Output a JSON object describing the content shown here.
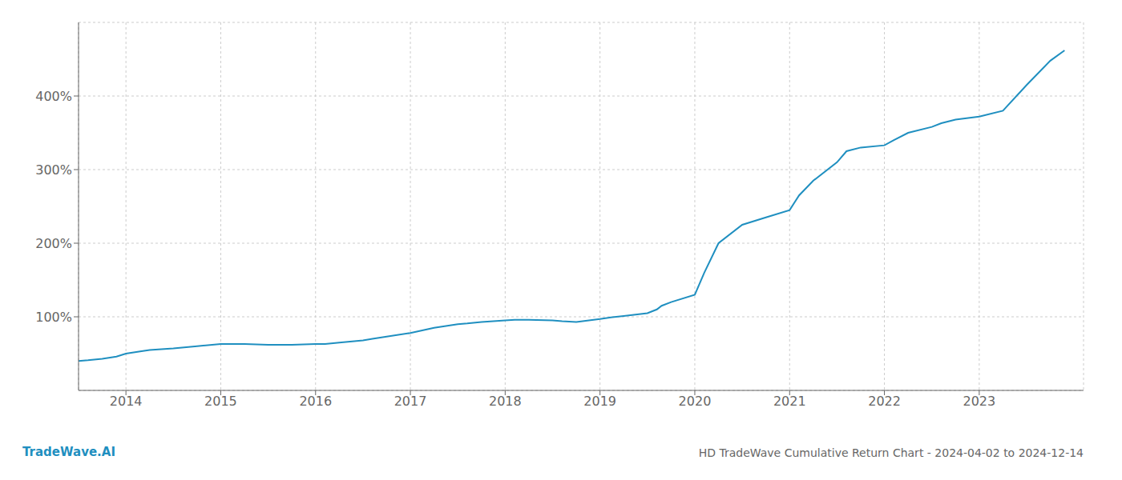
{
  "chart_data": {
    "type": "line",
    "title": "HD TradeWave Cumulative Return Chart - 2024-04-02 to 2024-12-14",
    "annotations": [
      "TradeWave.AI"
    ],
    "x": [
      2013.5,
      2013.6,
      2013.75,
      2013.9,
      2014.0,
      2014.15,
      2014.25,
      2014.5,
      2014.75,
      2015.0,
      2015.1,
      2015.25,
      2015.5,
      2015.75,
      2016.0,
      2016.1,
      2016.25,
      2016.5,
      2016.6,
      2016.75,
      2017.0,
      2017.25,
      2017.5,
      2017.6,
      2017.75,
      2018.0,
      2018.1,
      2018.25,
      2018.5,
      2018.6,
      2018.75,
      2019.0,
      2019.1,
      2019.25,
      2019.5,
      2019.6,
      2019.65,
      2019.75,
      2020.0,
      2020.1,
      2020.25,
      2020.5,
      2020.75,
      2021.0,
      2021.1,
      2021.25,
      2021.5,
      2021.6,
      2021.75,
      2022.0,
      2022.1,
      2022.25,
      2022.5,
      2022.6,
      2022.75,
      2023.0,
      2023.25,
      2023.5,
      2023.75,
      2023.9
    ],
    "values": [
      40,
      41,
      43,
      46,
      50,
      53,
      55,
      57,
      60,
      63,
      63,
      63,
      62,
      62,
      63,
      63,
      65,
      68,
      70,
      73,
      78,
      85,
      90,
      91,
      93,
      95,
      96,
      96,
      95,
      94,
      93,
      97,
      99,
      101,
      105,
      110,
      115,
      120,
      130,
      160,
      200,
      225,
      235,
      245,
      265,
      285,
      310,
      325,
      330,
      333,
      340,
      350,
      358,
      363,
      368,
      372,
      380,
      415,
      448,
      462
    ],
    "color": "#1f8fc0",
    "xlim": [
      2013.5,
      2024.1
    ],
    "xticks": [
      2014,
      2015,
      2016,
      2017,
      2018,
      2019,
      2020,
      2021,
      2022,
      2023
    ],
    "ylim": [
      0,
      500
    ],
    "yticks": [
      {
        "value": 100,
        "label": "100%"
      },
      {
        "value": 200,
        "label": "200%"
      },
      {
        "value": 300,
        "label": "300%"
      },
      {
        "value": 400,
        "label": "400%"
      }
    ],
    "grid": true
  }
}
